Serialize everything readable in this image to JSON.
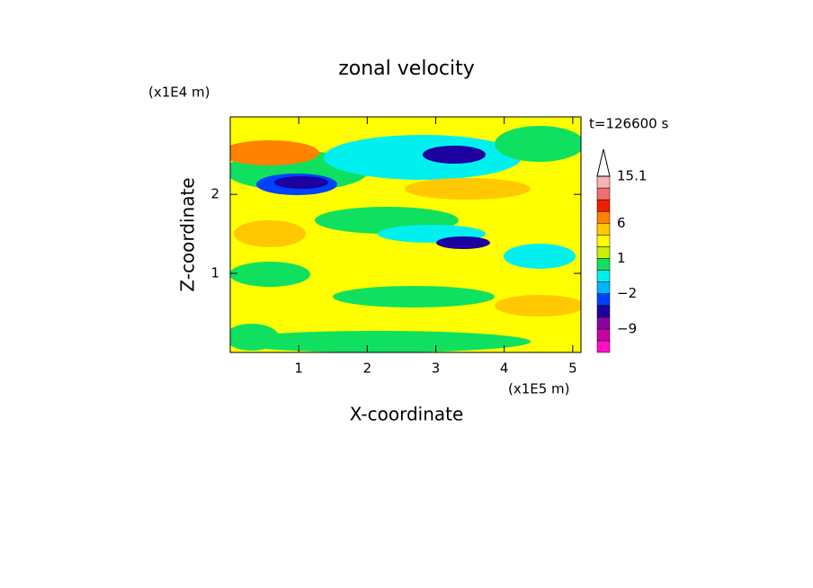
{
  "chart_data": {
    "type": "contour",
    "title": "zonal velocity",
    "x_label": "X-coordinate",
    "y_label": "Z-coordinate",
    "x_unit": "(x1E5 m)",
    "y_unit": "(x1E4 m)",
    "time_label": "t=126600 s",
    "xlim": [
      0,
      5.12
    ],
    "xticks": [
      1,
      2,
      3,
      4,
      5
    ],
    "ylim": [
      0,
      2.98
    ],
    "yticks": [
      1,
      2
    ],
    "colorbar": {
      "levels": [
        -15,
        -12,
        -9,
        -6,
        -4,
        -2,
        -1,
        0,
        1,
        2,
        4,
        6,
        8,
        10,
        12,
        15.1
      ],
      "labels": [
        null,
        null,
        "−9",
        null,
        null,
        "−2",
        null,
        null,
        "1",
        null,
        null,
        "6",
        null,
        null,
        null,
        "15.1"
      ],
      "colors": [
        "#ff10c8",
        "#c800a8",
        "#8c00a0",
        "#1c00a0",
        "#0040ff",
        "#00b4ff",
        "#00f0f0",
        "#10e060",
        "#c8f000",
        "#ffff00",
        "#ffc800",
        "#ff8200",
        "#f01e00",
        "#f06e6e",
        "#f8b4b4"
      ]
    }
  }
}
